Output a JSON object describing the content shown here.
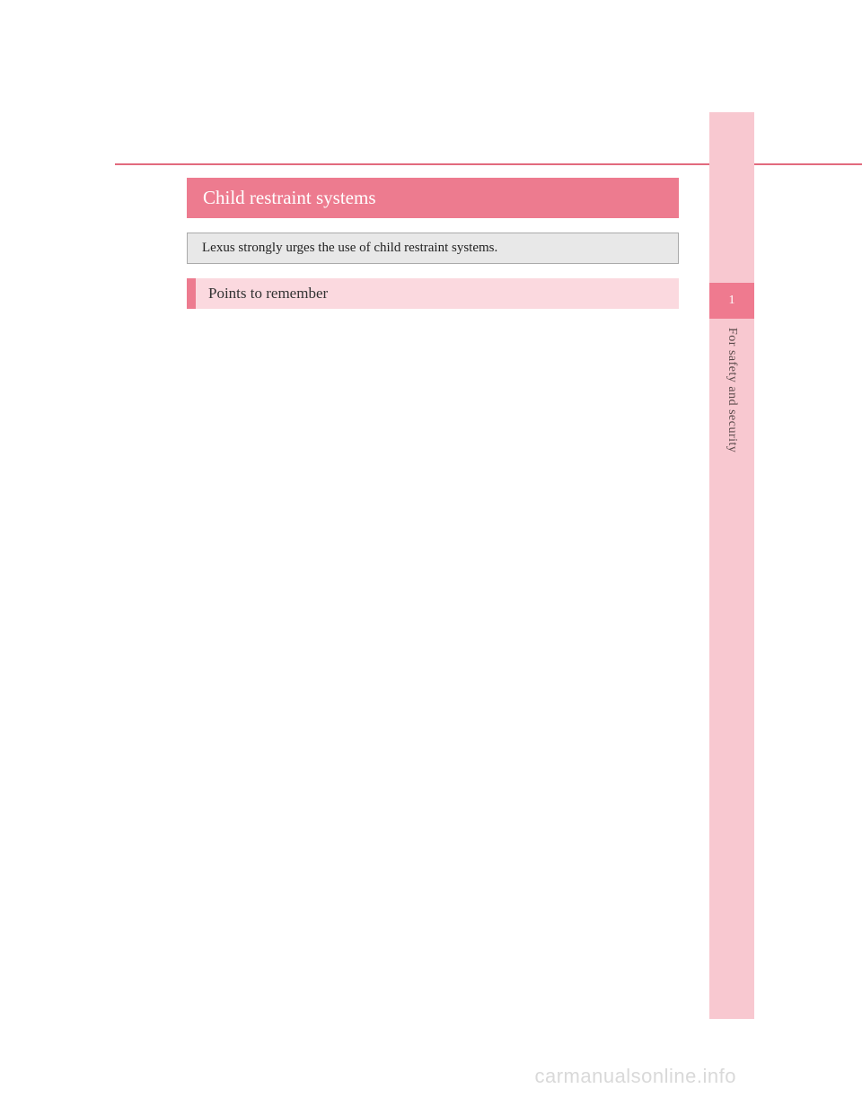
{
  "sidebar": {
    "tab_number": "1",
    "section_label": "For safety and security",
    "bg_color": "#f8c8d0",
    "tab_color": "#ef7a8f"
  },
  "content": {
    "title": "Child restraint systems",
    "intro": "Lexus strongly urges the use of child restraint systems.",
    "subheading": "Points to remember"
  },
  "colors": {
    "title_bar": "#ed7b8f",
    "intro_bg": "#e8e8e8",
    "subheading_bg": "#fbd9df",
    "subheading_accent": "#ed7b8f",
    "rule": "#e26a7e"
  },
  "footer": {
    "watermark": "carmanualsonline.info"
  }
}
